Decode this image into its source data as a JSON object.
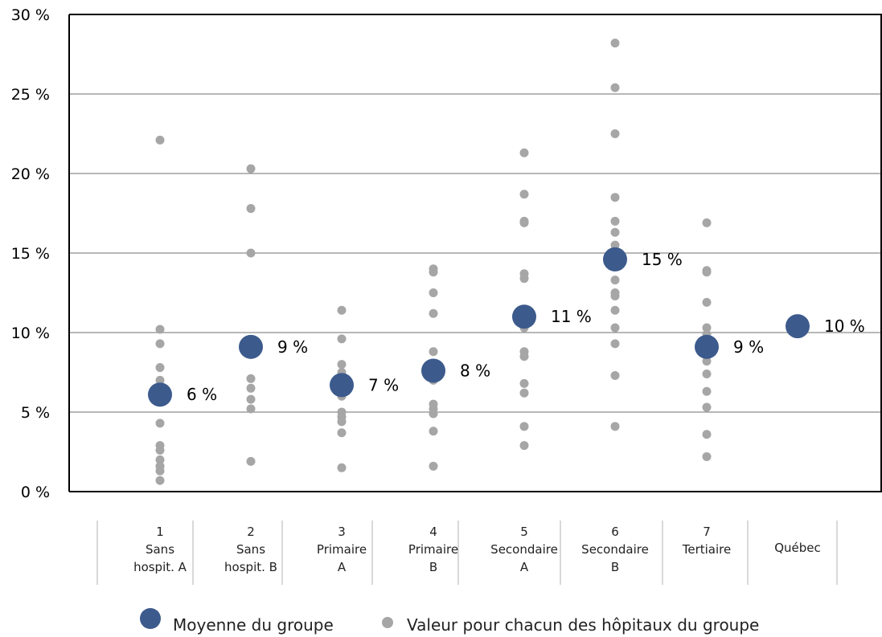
{
  "chart_data": {
    "type": "scatter",
    "ylim": [
      0,
      30
    ],
    "yticks": [
      "0 %",
      "5 %",
      "10 %",
      "15 %",
      "20 %",
      "25 %",
      "30 %"
    ],
    "grid": true,
    "legend_placement": "bottom",
    "categories": [
      [
        "1",
        "Sans",
        "hospit. A"
      ],
      [
        "2",
        "Sans",
        "hospit. B"
      ],
      [
        "3",
        "Primaire",
        "A"
      ],
      [
        "4",
        "Primaire",
        "B"
      ],
      [
        "5",
        "Secondaire",
        "A"
      ],
      [
        "6",
        "Secondaire",
        "B"
      ],
      [
        "7",
        "Tertiaire",
        ""
      ],
      [
        "Québec",
        "",
        ""
      ]
    ],
    "series": [
      {
        "name": "Valeur pour chacun des hôpitaux du groupe",
        "color": "#a6a6a6",
        "values": [
          [
            22.1,
            10.2,
            9.3,
            7.8,
            7.0,
            4.3,
            2.9,
            2.6,
            2.0,
            1.6,
            1.3,
            0.7
          ],
          [
            20.3,
            17.8,
            15.0,
            7.1,
            6.5,
            5.8,
            5.2,
            1.9
          ],
          [
            11.4,
            9.6,
            8.0,
            7.5,
            6.0,
            5.0,
            4.7,
            4.4,
            3.7,
            1.5
          ],
          [
            14.0,
            13.8,
            12.5,
            11.2,
            8.8,
            7.0,
            5.5,
            5.2,
            4.9,
            3.8,
            1.6
          ],
          [
            21.3,
            18.7,
            17.0,
            16.9,
            13.7,
            13.4,
            10.3,
            8.8,
            8.5,
            6.8,
            6.2,
            4.1,
            2.9
          ],
          [
            28.2,
            25.4,
            22.5,
            18.5,
            17.0,
            16.3,
            15.5,
            13.3,
            12.5,
            12.3,
            11.4,
            10.3,
            9.3,
            7.3,
            4.1
          ],
          [
            16.9,
            13.9,
            13.8,
            11.9,
            10.3,
            9.9,
            8.2,
            7.4,
            6.3,
            5.3,
            3.6,
            2.2
          ],
          []
        ]
      },
      {
        "name": "Moyenne du groupe",
        "color": "#3c5a8c",
        "values": [
          6.1,
          9.1,
          6.7,
          7.6,
          11.0,
          14.6,
          9.1,
          10.4
        ],
        "labels": [
          "6 %",
          "9 %",
          "7 %",
          "8 %",
          "11 %",
          "15 %",
          "9 %",
          "10 %"
        ]
      }
    ]
  }
}
